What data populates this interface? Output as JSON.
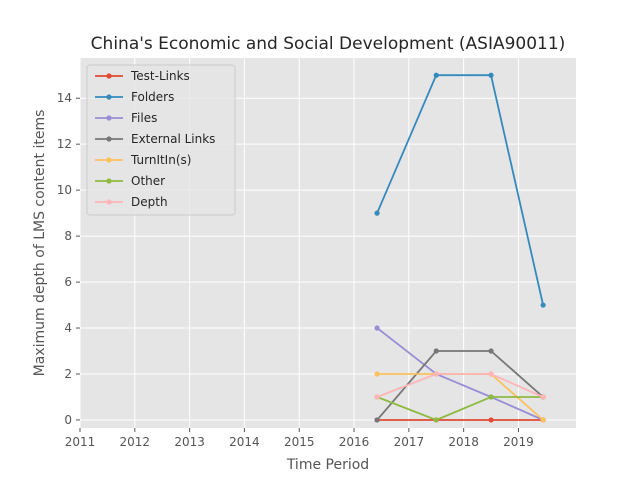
{
  "chart_data": {
    "type": "line",
    "title": "China's Economic and Social Development (ASIA90011)",
    "xlabel": "Time Period",
    "ylabel": "Maximum depth of LMS content items",
    "xlim": [
      2011.0,
      2020.05
    ],
    "ylim": [
      -0.35,
      15.75
    ],
    "x_ticks": [
      2011,
      2012,
      2013,
      2014,
      2015,
      2016,
      2017,
      2018,
      2019
    ],
    "y_ticks": [
      0,
      2,
      4,
      6,
      8,
      10,
      12,
      14
    ],
    "grid": true,
    "legend_position": "upper-left",
    "x": [
      2016.42,
      2017.5,
      2018.5,
      2019.45
    ],
    "series": [
      {
        "name": "Test-Links",
        "color": "#E24A33",
        "values": [
          0,
          0,
          0,
          0
        ]
      },
      {
        "name": "Folders",
        "color": "#348ABD",
        "values": [
          9,
          15,
          15,
          5
        ]
      },
      {
        "name": "Files",
        "color": "#988ED5",
        "values": [
          4,
          2,
          1,
          0
        ]
      },
      {
        "name": "External Links",
        "color": "#777777",
        "values": [
          0,
          3,
          3,
          1
        ]
      },
      {
        "name": "TurnItIn(s)",
        "color": "#FBC15E",
        "values": [
          2,
          2,
          2,
          0
        ]
      },
      {
        "name": "Other",
        "color": "#8EBA42",
        "values": [
          1,
          0,
          1,
          1
        ]
      },
      {
        "name": "Depth",
        "color": "#FFB5B8",
        "values": [
          1,
          2,
          2,
          1
        ]
      }
    ]
  }
}
